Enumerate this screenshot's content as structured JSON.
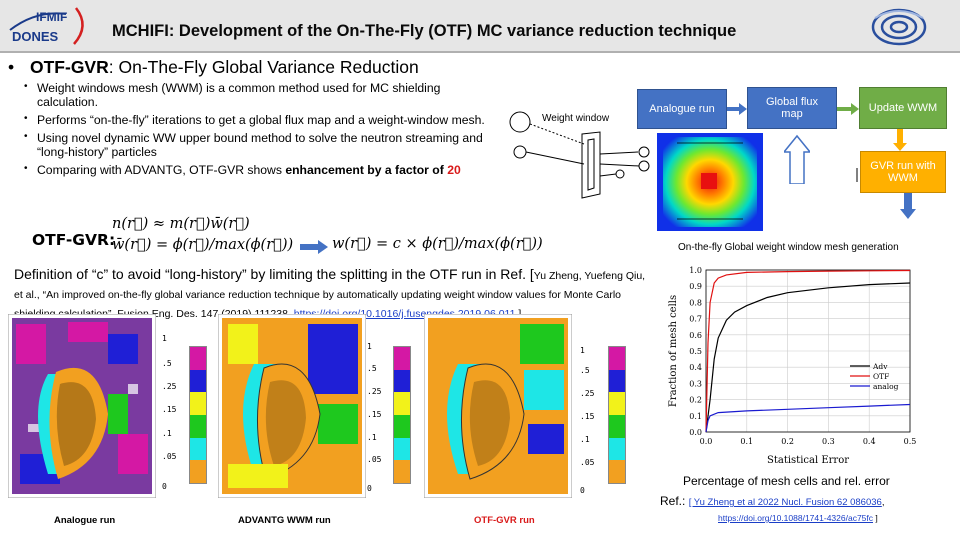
{
  "header": {
    "title": "MCHIFI: Development of the On-The-Fly (OTF) MC variance reduction technique",
    "logo_text_top": "IFMIF",
    "logo_text_bottom": "DONES"
  },
  "main_bullet": {
    "bold": "OTF-GVR",
    "rest": ": On-The-Fly Global Variance Reduction"
  },
  "sub_bullets": [
    "Weight windows mesh (WWM) is a common method used for MC shielding calculation.",
    "Performs “on-the-fly” iterations to get a global flux map and a weight-window mesh.",
    "Using novel dynamic WW upper bound method to solve the neutron streaming and “long-history” particles",
    "Comparing with ADVANTG, OTF-GVR shows "
  ],
  "sub_bullet_4_bold": "enhancement by a factor of ",
  "sub_bullet_4_red": "20",
  "equations": {
    "label": "OTF-GVR:",
    "eq1": "n(r⃗) ≈ m(r⃗)w̄(r⃗)",
    "eq2": "w̄(r⃗) = ϕ(r⃗)/max(ϕ(r⃗))",
    "eq3": "w(r⃗) = c × ϕ(r⃗)/max(ϕ(r⃗))"
  },
  "definition": {
    "main": "Definition of “c” to avoid “long-history” by limiting the splitting in the OTF run in Ref. [",
    "cite": "Yu Zheng, Yuefeng Qiu, et al., “An improved on-the-fly global variance reduction technique by automatically updating weight window values for Monte Carlo shielding calculation”, Fusion Eng. Des. 147 (2019) 111238, ",
    "link": "https://doi.org/10.1016/j.fusengdes.2019.06.011",
    "end": " ]"
  },
  "maps": [
    {
      "label": "Analogue run",
      "label_color": "#000000",
      "ticks": [
        "1",
        ".5",
        ".25",
        ".15",
        ".1",
        ".05",
        "0"
      ]
    },
    {
      "label": "ADVANTG WWM run",
      "label_color": "#000000",
      "ticks": [
        "1",
        ".5",
        ".25",
        ".15",
        ".1",
        ".05",
        "0"
      ]
    },
    {
      "label": "OTF-GVR run",
      "label_color": "#d91a1a",
      "ticks": [
        "1",
        ".5",
        ".25",
        ".15",
        ".1",
        ".05",
        "0"
      ]
    }
  ],
  "colorbar_colors": [
    "#d418a4",
    "#1f1fd6",
    "#f2f21a",
    "#1ec81e",
    "#1ee6e6",
    "#f2a020"
  ],
  "flowchart": {
    "weight_window_label": "Weight window",
    "analogue_run": "Analogue run",
    "global_flux_map": "Global flux map",
    "update_wwm": "Update WWM",
    "gvr_run": "GVR run with WWM",
    "caption": "On-the-fly Global weight window mesh generation"
  },
  "chart_data": {
    "type": "line",
    "xlabel": "Statistical Error",
    "ylabel": "Fraction of mesh cells",
    "xlim": [
      0.0,
      0.5
    ],
    "ylim": [
      0.0,
      1.0
    ],
    "xticks": [
      "0.0",
      "0.1",
      "0.2",
      "0.3",
      "0.4",
      "0.5"
    ],
    "yticks": [
      "0.0",
      "0.1",
      "0.2",
      "0.3",
      "0.4",
      "0.5",
      "0.6",
      "0.7",
      "0.8",
      "0.9",
      "1.0"
    ],
    "grid": true,
    "legend_position": "center-right",
    "series": [
      {
        "name": "Adv",
        "color": "#000000",
        "x": [
          0.0,
          0.01,
          0.02,
          0.03,
          0.05,
          0.07,
          0.1,
          0.15,
          0.2,
          0.3,
          0.4,
          0.5
        ],
        "y": [
          0.0,
          0.2,
          0.45,
          0.58,
          0.69,
          0.74,
          0.78,
          0.83,
          0.86,
          0.89,
          0.91,
          0.92
        ]
      },
      {
        "name": "OTF",
        "color": "#e01010",
        "x": [
          0.0,
          0.005,
          0.01,
          0.02,
          0.03,
          0.05,
          0.1,
          0.2,
          0.3,
          0.4,
          0.5
        ],
        "y": [
          0.0,
          0.55,
          0.8,
          0.92,
          0.95,
          0.97,
          0.985,
          0.99,
          0.993,
          0.995,
          0.997
        ]
      },
      {
        "name": "analog",
        "color": "#1a1ad0",
        "x": [
          0.0,
          0.005,
          0.01,
          0.03,
          0.1,
          0.2,
          0.3,
          0.4,
          0.5
        ],
        "y": [
          0.0,
          0.07,
          0.1,
          0.12,
          0.13,
          0.14,
          0.15,
          0.16,
          0.17
        ]
      }
    ],
    "caption": "Percentage of mesh cells and rel. error"
  },
  "reference": {
    "prefix": "Ref.: ",
    "link1": "[ Yu Zheng et al 2022 Nucl. Fusion 62 086036",
    "comma": ",",
    "link2": "https://doi.org/10.1088/1741-4326/ac75fc",
    "end": " ]"
  }
}
